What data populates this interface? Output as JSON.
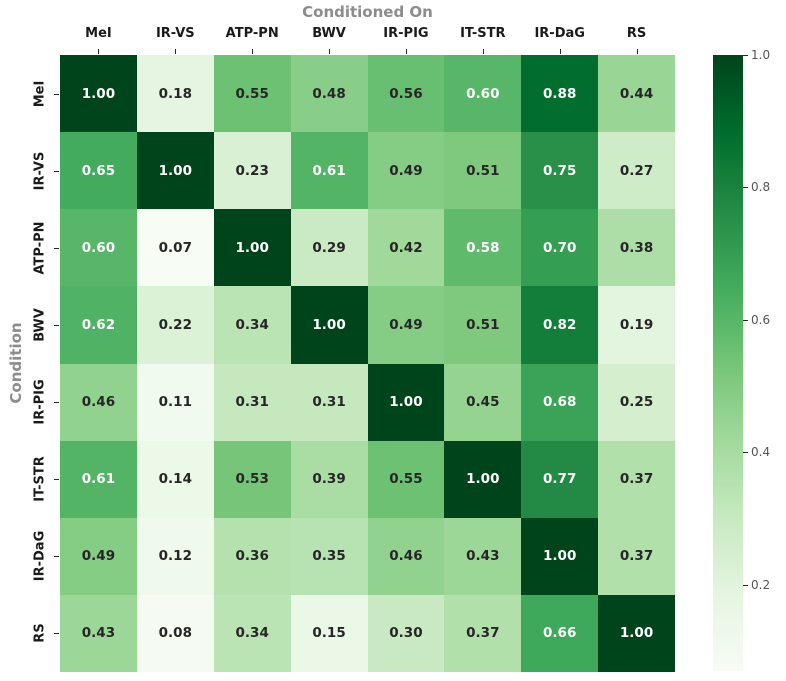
{
  "figure": {
    "background": "#ffffff"
  },
  "chart_data": {
    "type": "heatmap",
    "title": "Conditioned On",
    "ylabel": "Condition",
    "columns": [
      "MeI",
      "IR-VS",
      "ATP-PN",
      "BWV",
      "IR-PIG",
      "IT-STR",
      "IR-DaG",
      "RS"
    ],
    "rows": [
      "MeI",
      "IR-VS",
      "ATP-PN",
      "BWV",
      "IR-PIG",
      "IT-STR",
      "IR-DaG",
      "RS"
    ],
    "matrix": [
      [
        1.0,
        0.18,
        0.55,
        0.48,
        0.56,
        0.6,
        0.88,
        0.44
      ],
      [
        0.65,
        1.0,
        0.23,
        0.61,
        0.49,
        0.51,
        0.75,
        0.27
      ],
      [
        0.6,
        0.07,
        1.0,
        0.29,
        0.42,
        0.58,
        0.7,
        0.38
      ],
      [
        0.62,
        0.22,
        0.34,
        1.0,
        0.49,
        0.51,
        0.82,
        0.19
      ],
      [
        0.46,
        0.11,
        0.31,
        0.31,
        1.0,
        0.45,
        0.68,
        0.25
      ],
      [
        0.61,
        0.14,
        0.53,
        0.39,
        0.55,
        1.0,
        0.77,
        0.37
      ],
      [
        0.49,
        0.12,
        0.36,
        0.35,
        0.46,
        0.43,
        1.0,
        0.37
      ],
      [
        0.43,
        0.08,
        0.34,
        0.15,
        0.3,
        0.37,
        0.66,
        1.0
      ]
    ],
    "value_decimals": 2,
    "colormap": "Greens",
    "colormap_anchors": [
      "#f7fcf5",
      "#e5f5e0",
      "#c7e9c0",
      "#a1d99b",
      "#74c476",
      "#41ab5d",
      "#238b45",
      "#006d2c",
      "#00441b"
    ],
    "vmin": 0.07,
    "vmax": 1.0,
    "colorbar_ticks": [
      {
        "value": 1.0,
        "label": "1.0"
      },
      {
        "value": 0.8,
        "label": "0.8"
      },
      {
        "value": 0.6,
        "label": "0.6"
      },
      {
        "value": 0.4,
        "label": "0.4"
      },
      {
        "value": 0.2,
        "label": "0.2"
      }
    ],
    "legend_position": "right-colorbar",
    "grid": false,
    "colors": {
      "title": "#8c8c8c",
      "axis_label": "#8c8c8c",
      "tick_label": "#1a1a1a",
      "tick_mark": "#262626",
      "annotation_dark": "#262626",
      "annotation_light": "#ffffff",
      "colorbar_tick_label": "#555555"
    }
  }
}
